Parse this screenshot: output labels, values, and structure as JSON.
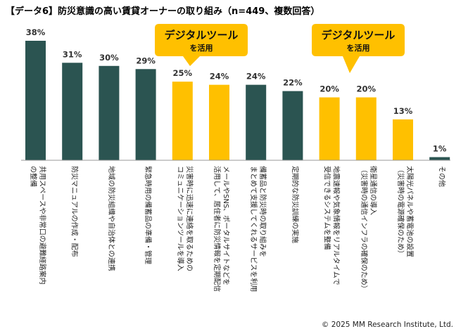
{
  "title": "【データ6】防災意識の高い賃貸オーナーの取り組み（n=449、複数回答）",
  "callouts": [
    {
      "main": "デジタルツール",
      "sub": "を活用"
    },
    {
      "main": "デジタルツール",
      "sub": "を活用"
    }
  ],
  "copyright": "© 2025 MM Research Institute, Ltd.",
  "colors": {
    "dark": "#2b5451",
    "highlight": "#ffc000",
    "axis": "#9a9a9a"
  },
  "chart_data": {
    "type": "bar",
    "title": "【データ6】防災意識の高い賃貸オーナーの取り組み（n=449、複数回答）",
    "unit": "%",
    "ylim": [
      0,
      40
    ],
    "categories": [
      [
        "共用スペースや非常口の避難経路案内",
        "の整備"
      ],
      [
        "防災マニュアルの作成・配布"
      ],
      [
        "地域の防災組織や自治体との連携"
      ],
      [
        "緊急時用の備蓄品の準備・管理"
      ],
      [
        "災害時に迅速に連絡を取るための",
        "コミュニケーションツールを導入"
      ],
      [
        "メールやSNS、ポータルサイトなどを",
        "活用して、居住者に防災情報を定期配信"
      ],
      [
        "備蓄品と防災時の取り組みを",
        "まとめて支援してくれるサービスを利用"
      ],
      [
        "定期的な防災訓練の実施"
      ],
      [
        "地震速報や気象情報をリアルタイムで",
        "受信できるシステムを整備"
      ],
      [
        "衛星通信の導入",
        "（災害時の通信インフラの確保のため）"
      ],
      [
        "太陽光パネルや蓄電池の設置",
        "（災害時の電源確保のため）"
      ],
      [
        "その他"
      ]
    ],
    "values": [
      38,
      31,
      30,
      29,
      25,
      24,
      24,
      22,
      20,
      20,
      13,
      1
    ],
    "value_labels": [
      "38%",
      "31%",
      "30%",
      "29%",
      "25%",
      "24%",
      "24%",
      "22%",
      "20%",
      "20%",
      "13%",
      "1%"
    ],
    "highlight": [
      false,
      false,
      false,
      false,
      true,
      true,
      false,
      false,
      true,
      true,
      true,
      false
    ]
  }
}
